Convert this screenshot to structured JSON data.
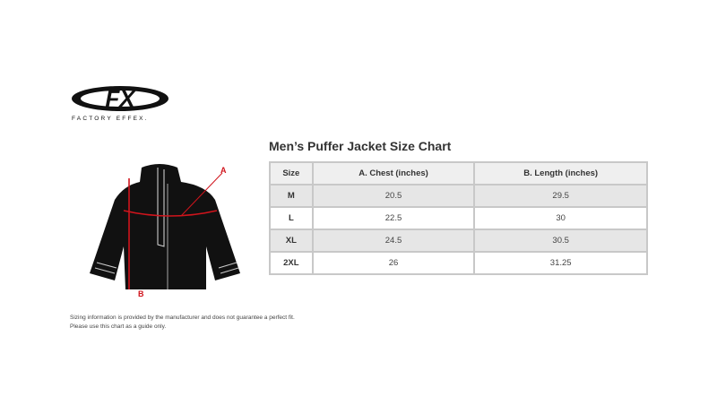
{
  "logo": {
    "text": "FX",
    "subtitle": "FACTORY EFFEX"
  },
  "title": "Men’s Puffer Jacket Size Chart",
  "diagram": {
    "label_a": "A",
    "label_b": "B",
    "accent": "#d0141c"
  },
  "table": {
    "headers": [
      "Size",
      "A. Chest (inches)",
      "B. Length (inches)"
    ],
    "rows": [
      [
        "M",
        "20.5",
        "29.5"
      ],
      [
        "L",
        "22.5",
        "30"
      ],
      [
        "XL",
        "24.5",
        "30.5"
      ],
      [
        "2XL",
        "26",
        "31.25"
      ]
    ]
  },
  "notes": [
    "Sizing information is provided by the manufacturer and does not guarantee a perfect fit.",
    "Please use this chart as a guide only."
  ]
}
